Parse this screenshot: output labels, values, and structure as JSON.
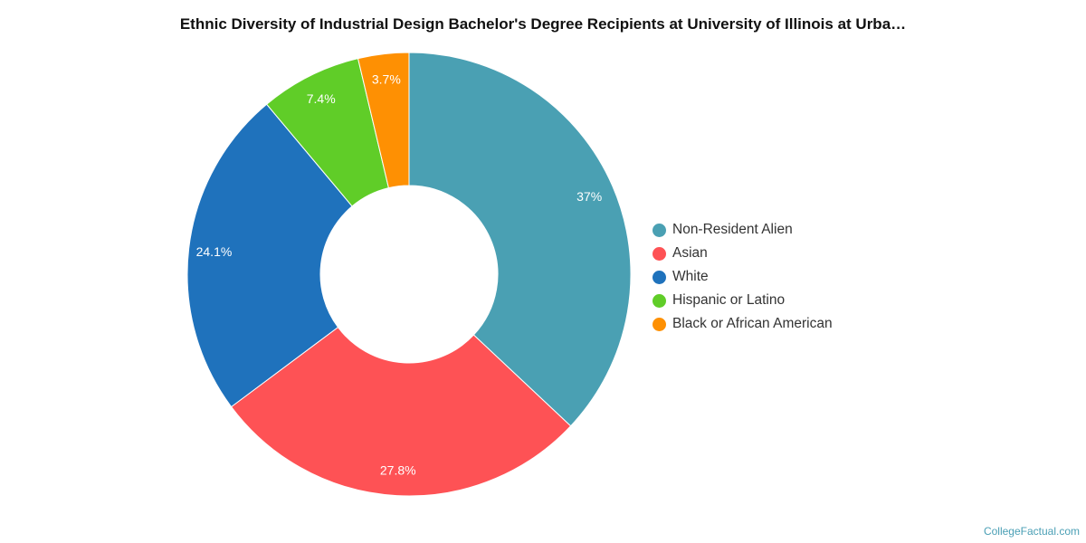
{
  "chart_data": {
    "type": "pie",
    "title": "Ethnic Diversity of Industrial Design Bachelor's Degree Recipients at University of Illinois at Urba…",
    "categories": [
      "Non-Resident Alien",
      "Asian",
      "White",
      "Hispanic or Latino",
      "Black or African American"
    ],
    "values": [
      37,
      27.8,
      24.1,
      7.4,
      3.7
    ],
    "data_labels": [
      "37%",
      "27.8%",
      "24.1%",
      "7.4%",
      "3.7%"
    ],
    "colors": [
      "#4aa0b3",
      "#fe5255",
      "#1f72bc",
      "#60cd28",
      "#fe9003"
    ],
    "hole": "donut",
    "legend_position": "right"
  },
  "credit": "CollegeFactual.com"
}
